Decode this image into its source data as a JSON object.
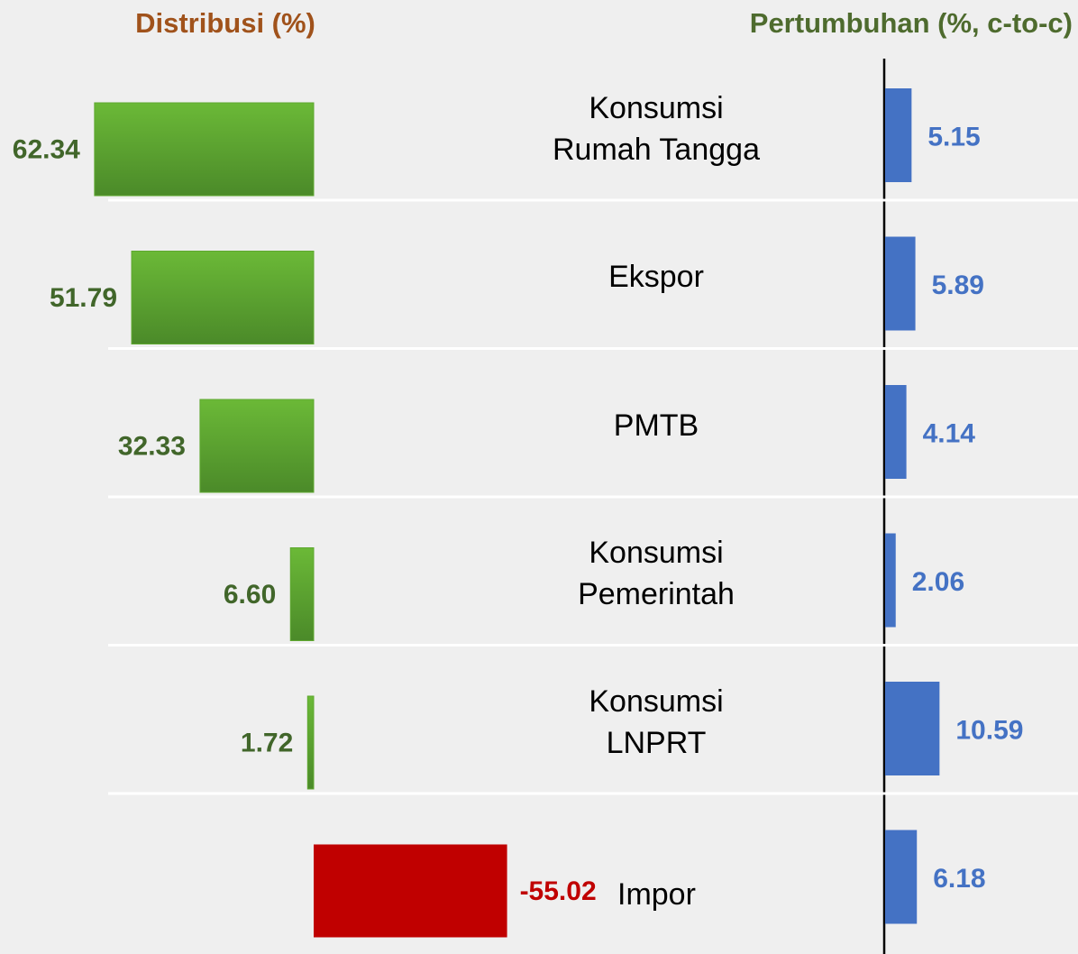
{
  "chart_data": [
    {
      "type": "bar",
      "title": "Distribusi (%)",
      "title_color": "#a0521b",
      "categories": [
        "Konsumsi Rumah Tangga",
        "Ekspor",
        "PMTB",
        "Konsumsi Pemerintah",
        "Konsumsi LNPRT",
        "Impor"
      ],
      "values": [
        62.34,
        51.79,
        32.33,
        6.6,
        1.72,
        -55.02
      ],
      "value_labels": [
        "62.34",
        "51.79",
        "32.33",
        "6.60",
        "1.72",
        "-55.02"
      ],
      "color": "#5fa830",
      "negative_color": "#c00000",
      "label_color": "#41662a"
    },
    {
      "type": "bar",
      "title": "Pertumbuhan (%, c-to-c)",
      "title_color": "#4e6b2e",
      "values": [
        5.15,
        5.89,
        4.14,
        2.06,
        10.59,
        6.18
      ],
      "color": "#4472c4",
      "label_color": "#4472c4"
    }
  ]
}
